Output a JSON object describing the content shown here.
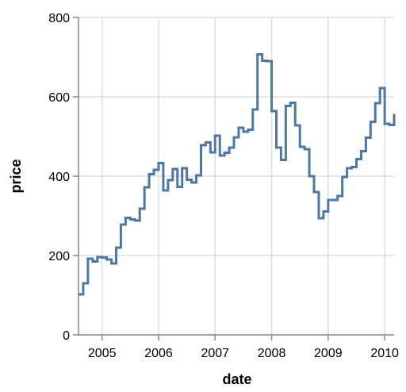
{
  "chart_data": {
    "type": "line",
    "interpolation": "step",
    "xlabel": "date",
    "ylabel": "price",
    "xlim": [
      "2004-08",
      "2010-03"
    ],
    "ylim": [
      0,
      800
    ],
    "x_ticks": [
      "2005",
      "2006",
      "2007",
      "2008",
      "2009",
      "2010"
    ],
    "y_ticks": [
      "0",
      "200",
      "400",
      "600",
      "800"
    ],
    "grid": true,
    "legend": "none",
    "line_color": "#4c78a8",
    "series": [
      {
        "x": [
          "2004-08",
          "2004-09",
          "2004-10",
          "2004-11",
          "2004-12",
          "2005-01",
          "2005-02",
          "2005-03",
          "2005-04",
          "2005-05",
          "2005-06",
          "2005-07",
          "2005-08",
          "2005-09",
          "2005-10",
          "2005-11",
          "2005-12",
          "2006-01",
          "2006-02",
          "2006-03",
          "2006-04",
          "2006-05",
          "2006-06",
          "2006-07",
          "2006-08",
          "2006-09",
          "2006-10",
          "2006-11",
          "2006-12",
          "2007-01",
          "2007-02",
          "2007-03",
          "2007-04",
          "2007-05",
          "2007-06",
          "2007-07",
          "2007-08",
          "2007-09",
          "2007-10",
          "2007-11",
          "2007-12",
          "2008-01",
          "2008-02",
          "2008-03",
          "2008-04",
          "2008-05",
          "2008-06",
          "2008-07",
          "2008-08",
          "2008-09",
          "2008-10",
          "2008-11",
          "2008-12",
          "2009-01",
          "2009-02",
          "2009-03",
          "2009-04",
          "2009-05",
          "2009-06",
          "2009-07",
          "2009-08",
          "2009-09",
          "2009-10",
          "2009-11",
          "2009-12",
          "2010-01",
          "2010-02",
          "2010-03"
        ],
        "values": [
          102,
          130,
          192,
          185,
          196,
          195,
          190,
          180,
          220,
          278,
          295,
          291,
          288,
          318,
          372,
          405,
          416,
          433,
          364,
          390,
          418,
          373,
          420,
          391,
          384,
          402,
          478,
          485,
          460,
          502,
          452,
          459,
          472,
          498,
          522,
          512,
          517,
          568,
          707,
          691,
          690,
          564,
          472,
          441,
          577,
          585,
          528,
          474,
          468,
          400,
          360,
          294,
          311,
          340,
          340,
          350,
          398,
          420,
          423,
          443,
          463,
          497,
          537,
          584,
          622,
          532,
          529,
          557
        ]
      }
    ]
  }
}
